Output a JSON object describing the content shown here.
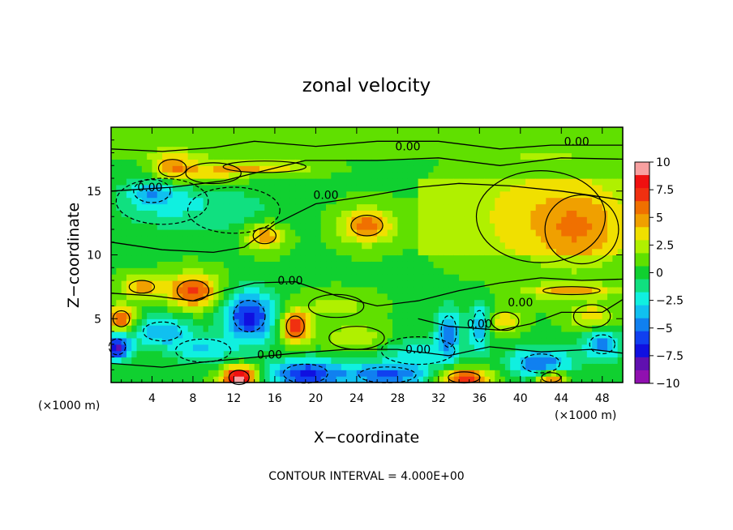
{
  "chart_data": {
    "type": "heatmap",
    "title": "zonal velocity",
    "xlabel": "X−coordinate",
    "ylabel": "Z−coordinate",
    "x_unit_note": "(×1000 m)",
    "y_unit_note": "(×1000 m)",
    "xlim": [
      0,
      50
    ],
    "ylim": [
      0,
      20
    ],
    "x_ticks": [
      "4",
      "8",
      "12",
      "16",
      "20",
      "24",
      "28",
      "32",
      "36",
      "40",
      "44",
      "48"
    ],
    "y_ticks": [
      "5",
      "10",
      "15"
    ],
    "colorbar": {
      "range": [
        -10,
        10
      ],
      "tick_labels": [
        "10",
        "7.5",
        "5",
        "2.5",
        "0",
        "−2.5",
        "−5",
        "−7.5",
        "−10"
      ],
      "colors": [
        "#f8a0a0",
        "#f01010",
        "#f03010",
        "#f07000",
        "#f0a000",
        "#f0e000",
        "#b0f000",
        "#60e000",
        "#10d030",
        "#10e080",
        "#10f0e0",
        "#10c0f0",
        "#1080f0",
        "#1040f0",
        "#1010e0",
        "#6010b0",
        "#9010b0"
      ]
    },
    "contour_labels": [
      "0.00",
      "0.00",
      "0.00",
      "0.00",
      "0.00",
      "0.00",
      "0.00",
      "0.00",
      "0.00"
    ],
    "background_value": 0.5,
    "blobs": [
      {
        "x": 6,
        "y": 16.8,
        "v": 5,
        "rx": 2.2,
        "ry": 1.1
      },
      {
        "x": 10,
        "y": 16.4,
        "v": 3.2,
        "rx": 3.0,
        "ry": 0.9
      },
      {
        "x": 15,
        "y": 16.9,
        "v": 3.8,
        "rx": 4.5,
        "ry": 0.5
      },
      {
        "x": 5,
        "y": 14.2,
        "v": -2.5,
        "rx": 5.0,
        "ry": 2.0
      },
      {
        "x": 12,
        "y": 13.5,
        "v": -1.5,
        "rx": 5.0,
        "ry": 2.0
      },
      {
        "x": 4,
        "y": 15.0,
        "v": -2.8,
        "rx": 2.0,
        "ry": 1.0
      },
      {
        "x": 42,
        "y": 13.0,
        "v": 2.0,
        "rx": 7.0,
        "ry": 4.0
      },
      {
        "x": 46,
        "y": 12.0,
        "v": 2.5,
        "rx": 4.0,
        "ry": 3.0
      },
      {
        "x": 25,
        "y": 12.3,
        "v": 5.5,
        "rx": 2.5,
        "ry": 1.3
      },
      {
        "x": 15,
        "y": 11.5,
        "v": 5.0,
        "rx": 1.8,
        "ry": 1.0
      },
      {
        "x": 8,
        "y": 7.2,
        "v": 6.5,
        "rx": 2.5,
        "ry": 1.3
      },
      {
        "x": 18,
        "y": 4.4,
        "v": 7.0,
        "rx": 1.4,
        "ry": 1.3
      },
      {
        "x": 1,
        "y": 5.0,
        "v": 6.5,
        "rx": 1.3,
        "ry": 1.0
      },
      {
        "x": 3,
        "y": 7.5,
        "v": 4.5,
        "rx": 2.0,
        "ry": 0.8
      },
      {
        "x": 12.5,
        "y": 0.4,
        "v": 10,
        "rx": 1.6,
        "ry": 0.9
      },
      {
        "x": 34.5,
        "y": 0.4,
        "v": 7.5,
        "rx": 2.5,
        "ry": 0.7
      },
      {
        "x": 43,
        "y": 0.4,
        "v": 7.0,
        "rx": 1.5,
        "ry": 0.6
      },
      {
        "x": 13.5,
        "y": 5.2,
        "v": -7.5,
        "rx": 2.5,
        "ry": 2.0
      },
      {
        "x": 5,
        "y": 4.0,
        "v": -4.5,
        "rx": 3.0,
        "ry": 1.2
      },
      {
        "x": 0.6,
        "y": 2.8,
        "v": -8.5,
        "rx": 1.3,
        "ry": 1.0
      },
      {
        "x": 9,
        "y": 2.5,
        "v": -3.5,
        "rx": 3.0,
        "ry": 1.0
      },
      {
        "x": 19,
        "y": 0.7,
        "v": -7.0,
        "rx": 3.5,
        "ry": 1.2
      },
      {
        "x": 27,
        "y": 0.6,
        "v": -6.0,
        "rx": 4.5,
        "ry": 1.0
      },
      {
        "x": 33,
        "y": 4.0,
        "v": -5.0,
        "rx": 1.2,
        "ry": 2.0
      },
      {
        "x": 36,
        "y": 4.4,
        "v": -4.5,
        "rx": 1.0,
        "ry": 2.0
      },
      {
        "x": 42,
        "y": 1.5,
        "v": -6.0,
        "rx": 3.0,
        "ry": 1.2
      },
      {
        "x": 48,
        "y": 3.0,
        "v": -5.0,
        "rx": 2.0,
        "ry": 1.2
      },
      {
        "x": 30,
        "y": 2.5,
        "v": -2.5,
        "rx": 4.0,
        "ry": 1.2
      },
      {
        "x": 38.5,
        "y": 4.8,
        "v": 3.5,
        "rx": 1.5,
        "ry": 0.8
      },
      {
        "x": 45,
        "y": 7.2,
        "v": 4.0,
        "rx": 4.5,
        "ry": 0.5
      },
      {
        "x": 24,
        "y": 3.5,
        "v": 2.5,
        "rx": 3.0,
        "ry": 1.0
      },
      {
        "x": 22,
        "y": 6.0,
        "v": 2.0,
        "rx": 3.0,
        "ry": 1.0
      },
      {
        "x": 47,
        "y": 5.2,
        "v": 3.5,
        "rx": 2.0,
        "ry": 1.0
      }
    ]
  },
  "footer": {
    "text": "CONTOUR INTERVAL = 4.000E+00"
  }
}
